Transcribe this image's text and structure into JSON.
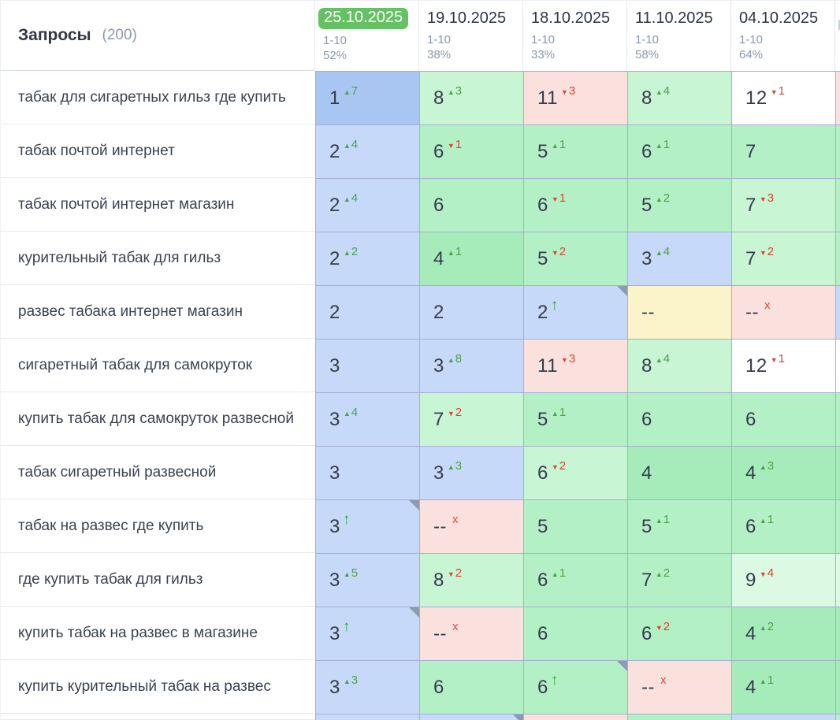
{
  "header": {
    "title": "Запросы",
    "count": "(200)",
    "columns": [
      {
        "date": "25.10.2025",
        "range": "1-10",
        "percent": "52%",
        "active": true
      },
      {
        "date": "19.10.2025",
        "range": "1-10",
        "percent": "38%",
        "active": false
      },
      {
        "date": "18.10.2025",
        "range": "1-10",
        "percent": "33%",
        "active": false
      },
      {
        "date": "11.10.2025",
        "range": "1-10",
        "percent": "58%",
        "active": false
      },
      {
        "date": "04.10.2025",
        "range": "1-10",
        "percent": "64%",
        "active": false
      }
    ]
  },
  "icons": {
    "up_triangle": "▲",
    "down_triangle": "▼",
    "up_arrow": "↑",
    "x_mark": "x"
  },
  "colors": {
    "badge_green": "#65c164",
    "blue1": "#a9c6f3",
    "blue2": "#c7d9f8",
    "green1": "#a6ecbb",
    "green2": "#b4f0c6",
    "green3": "#c8f5d3",
    "green4": "#dcf9e4",
    "pink": "#fae1de",
    "yellow": "#fbf4cb",
    "white": "#ffffff"
  },
  "rows": [
    {
      "query": "табак для сигаретных гильз где купить",
      "cells": [
        {
          "pos": "1",
          "chg": "up",
          "delta": "7",
          "bg": "blue1"
        },
        {
          "pos": "8",
          "chg": "up",
          "delta": "3",
          "bg": "green3"
        },
        {
          "pos": "11",
          "chg": "down",
          "delta": "3",
          "bg": "pink"
        },
        {
          "pos": "8",
          "chg": "up",
          "delta": "4",
          "bg": "green3"
        },
        {
          "pos": "12",
          "chg": "down",
          "delta": "1",
          "bg": "white"
        }
      ],
      "sliver": "pink"
    },
    {
      "query": "табак почтой интернет",
      "cells": [
        {
          "pos": "2",
          "chg": "up",
          "delta": "4",
          "bg": "blue2"
        },
        {
          "pos": "6",
          "chg": "down",
          "delta": "1",
          "bg": "green2"
        },
        {
          "pos": "5",
          "chg": "up",
          "delta": "1",
          "bg": "green2"
        },
        {
          "pos": "6",
          "chg": "up",
          "delta": "1",
          "bg": "green2"
        },
        {
          "pos": "7",
          "chg": "none",
          "delta": "",
          "bg": "green2"
        }
      ],
      "sliver": "green2"
    },
    {
      "query": "табак почтой интернет магазин",
      "cells": [
        {
          "pos": "2",
          "chg": "up",
          "delta": "4",
          "bg": "blue2"
        },
        {
          "pos": "6",
          "chg": "none",
          "delta": "",
          "bg": "green2"
        },
        {
          "pos": "6",
          "chg": "down",
          "delta": "1",
          "bg": "green2"
        },
        {
          "pos": "5",
          "chg": "up",
          "delta": "2",
          "bg": "green2"
        },
        {
          "pos": "7",
          "chg": "down",
          "delta": "3",
          "bg": "green3"
        }
      ],
      "sliver": "green2"
    },
    {
      "query": "курительный табак для гильз",
      "cells": [
        {
          "pos": "2",
          "chg": "up",
          "delta": "2",
          "bg": "blue2"
        },
        {
          "pos": "4",
          "chg": "up",
          "delta": "1",
          "bg": "green1"
        },
        {
          "pos": "5",
          "chg": "down",
          "delta": "2",
          "bg": "green2"
        },
        {
          "pos": "3",
          "chg": "up",
          "delta": "4",
          "bg": "blue2"
        },
        {
          "pos": "7",
          "chg": "down",
          "delta": "2",
          "bg": "green3"
        }
      ],
      "sliver": "green2"
    },
    {
      "query": "развес табака интернет магазин",
      "cells": [
        {
          "pos": "2",
          "chg": "none",
          "delta": "",
          "bg": "blue2"
        },
        {
          "pos": "2",
          "chg": "none",
          "delta": "",
          "bg": "blue2"
        },
        {
          "pos": "2",
          "chg": "arrow",
          "delta": "",
          "bg": "blue2",
          "corner": true
        },
        {
          "pos": "--",
          "chg": "none",
          "delta": "",
          "bg": "yellow"
        },
        {
          "pos": "--",
          "chg": "x",
          "delta": "",
          "bg": "pink"
        }
      ],
      "sliver": "blue2"
    },
    {
      "query": "сигаретный табак для самокруток",
      "cells": [
        {
          "pos": "3",
          "chg": "none",
          "delta": "",
          "bg": "blue2"
        },
        {
          "pos": "3",
          "chg": "up",
          "delta": "8",
          "bg": "blue2"
        },
        {
          "pos": "11",
          "chg": "down",
          "delta": "3",
          "bg": "pink"
        },
        {
          "pos": "8",
          "chg": "up",
          "delta": "4",
          "bg": "green3"
        },
        {
          "pos": "12",
          "chg": "down",
          "delta": "1",
          "bg": "white"
        }
      ],
      "sliver": "white"
    },
    {
      "query": "купить табак для самокруток развесной",
      "cells": [
        {
          "pos": "3",
          "chg": "up",
          "delta": "4",
          "bg": "blue2"
        },
        {
          "pos": "7",
          "chg": "down",
          "delta": "2",
          "bg": "green3"
        },
        {
          "pos": "5",
          "chg": "up",
          "delta": "1",
          "bg": "green2"
        },
        {
          "pos": "6",
          "chg": "none",
          "delta": "",
          "bg": "green2"
        },
        {
          "pos": "6",
          "chg": "none",
          "delta": "",
          "bg": "green2"
        }
      ],
      "sliver": "green2"
    },
    {
      "query": "табак сигаретный развесной",
      "cells": [
        {
          "pos": "3",
          "chg": "none",
          "delta": "",
          "bg": "blue2"
        },
        {
          "pos": "3",
          "chg": "up",
          "delta": "3",
          "bg": "blue2"
        },
        {
          "pos": "6",
          "chg": "down",
          "delta": "2",
          "bg": "green3"
        },
        {
          "pos": "4",
          "chg": "none",
          "delta": "",
          "bg": "green1"
        },
        {
          "pos": "4",
          "chg": "up",
          "delta": "3",
          "bg": "green1"
        }
      ],
      "sliver": "green1"
    },
    {
      "query": "табак на развес где купить",
      "cells": [
        {
          "pos": "3",
          "chg": "arrow",
          "delta": "",
          "bg": "blue2",
          "corner": true
        },
        {
          "pos": "--",
          "chg": "x",
          "delta": "",
          "bg": "pink"
        },
        {
          "pos": "5",
          "chg": "none",
          "delta": "",
          "bg": "green2"
        },
        {
          "pos": "5",
          "chg": "up",
          "delta": "1",
          "bg": "green2"
        },
        {
          "pos": "6",
          "chg": "up",
          "delta": "1",
          "bg": "green2"
        }
      ],
      "sliver": "green2"
    },
    {
      "query": "где купить табак для гильз",
      "cells": [
        {
          "pos": "3",
          "chg": "up",
          "delta": "5",
          "bg": "blue2"
        },
        {
          "pos": "8",
          "chg": "down",
          "delta": "2",
          "bg": "green3"
        },
        {
          "pos": "6",
          "chg": "up",
          "delta": "1",
          "bg": "green2"
        },
        {
          "pos": "7",
          "chg": "up",
          "delta": "2",
          "bg": "green2"
        },
        {
          "pos": "9",
          "chg": "down",
          "delta": "4",
          "bg": "green4"
        }
      ],
      "sliver": "green4"
    },
    {
      "query": "купить табак на развес в магазине",
      "cells": [
        {
          "pos": "3",
          "chg": "arrow",
          "delta": "",
          "bg": "blue2",
          "corner": true
        },
        {
          "pos": "--",
          "chg": "x",
          "delta": "",
          "bg": "pink"
        },
        {
          "pos": "6",
          "chg": "none",
          "delta": "",
          "bg": "green2"
        },
        {
          "pos": "6",
          "chg": "down",
          "delta": "2",
          "bg": "green2"
        },
        {
          "pos": "4",
          "chg": "up",
          "delta": "2",
          "bg": "green1"
        }
      ],
      "sliver": "green1"
    },
    {
      "query": "купить курительный табак на развес",
      "cells": [
        {
          "pos": "3",
          "chg": "up",
          "delta": "3",
          "bg": "blue2"
        },
        {
          "pos": "6",
          "chg": "none",
          "delta": "",
          "bg": "green2"
        },
        {
          "pos": "6",
          "chg": "arrow",
          "delta": "",
          "bg": "green2",
          "corner": true
        },
        {
          "pos": "--",
          "chg": "x",
          "delta": "",
          "bg": "pink"
        },
        {
          "pos": "4",
          "chg": "up",
          "delta": "1",
          "bg": "green1"
        }
      ],
      "sliver": "green1"
    }
  ],
  "partial_row": {
    "cells": [
      {
        "bg": "blue2"
      },
      {
        "bg": "blue2",
        "corner": true
      },
      {
        "bg": "pink"
      },
      {
        "bg": "green2"
      },
      {
        "bg": "blue2"
      }
    ],
    "sliver": "green2"
  }
}
